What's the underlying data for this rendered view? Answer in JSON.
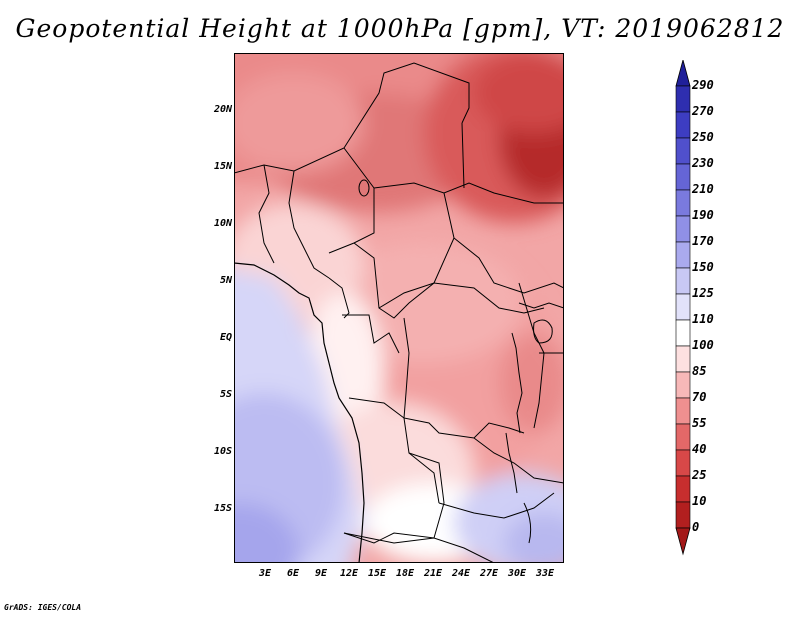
{
  "title": "Geopotential Height at 1000hPa [gpm], VT: 2019062812",
  "credit": "GrADS: IGES/COLA",
  "map": {
    "lat_labels": [
      "20N",
      "15N",
      "10N",
      "5N",
      "EQ",
      "5S",
      "10S",
      "15S"
    ],
    "lon_labels": [
      "3E",
      "6E",
      "9E",
      "12E",
      "15E",
      "18E",
      "21E",
      "24E",
      "27E",
      "30E",
      "33E"
    ]
  },
  "colorbar": {
    "levels": [
      "290",
      "270",
      "250",
      "230",
      "210",
      "190",
      "170",
      "150",
      "125",
      "110",
      "100",
      "85",
      "70",
      "55",
      "40",
      "25",
      "10",
      "0"
    ],
    "colors": [
      "#20209a",
      "#2e2eaf",
      "#3d3dc2",
      "#5050cc",
      "#6565d6",
      "#7a7ade",
      "#9090e6",
      "#aaaaee",
      "#c8c8f4",
      "#e2e2fa",
      "#ffffff",
      "#fde0e0",
      "#f7b8b8",
      "#ef9090",
      "#e36868",
      "#d84848",
      "#c72e2e",
      "#b21f1f",
      "#a31818"
    ]
  }
}
